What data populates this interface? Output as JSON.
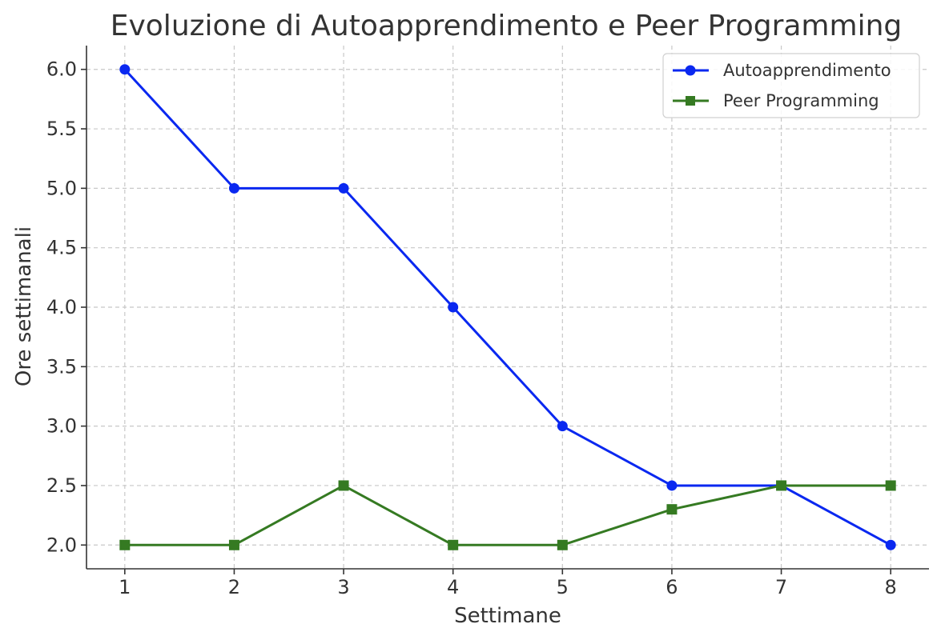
{
  "chart_data": {
    "type": "line",
    "title": "Evoluzione di Autoapprendimento e Peer Programming",
    "xlabel": "Settimane",
    "ylabel": "Ore settimanali",
    "x": [
      1,
      2,
      3,
      4,
      5,
      6,
      7,
      8
    ],
    "x_tick_labels": [
      "1",
      "2",
      "3",
      "4",
      "5",
      "6",
      "7",
      "8"
    ],
    "y_tick_labels": [
      "2.0",
      "2.5",
      "3.0",
      "3.5",
      "4.0",
      "4.5",
      "5.0",
      "5.5",
      "6.0"
    ],
    "xlim": [
      0.65,
      8.35
    ],
    "ylim": [
      1.8,
      6.2
    ],
    "grid": true,
    "legend_position": "top-right",
    "series": [
      {
        "name": "Autoapprendimento",
        "color": "#0a28f0",
        "marker": "circle",
        "values": [
          6.0,
          5.0,
          5.0,
          4.0,
          3.0,
          2.5,
          2.5,
          2.0
        ]
      },
      {
        "name": "Peer Programming",
        "color": "#357a22",
        "marker": "square",
        "values": [
          2.0,
          2.0,
          2.5,
          2.0,
          2.0,
          2.3,
          2.5,
          2.5
        ]
      }
    ]
  }
}
